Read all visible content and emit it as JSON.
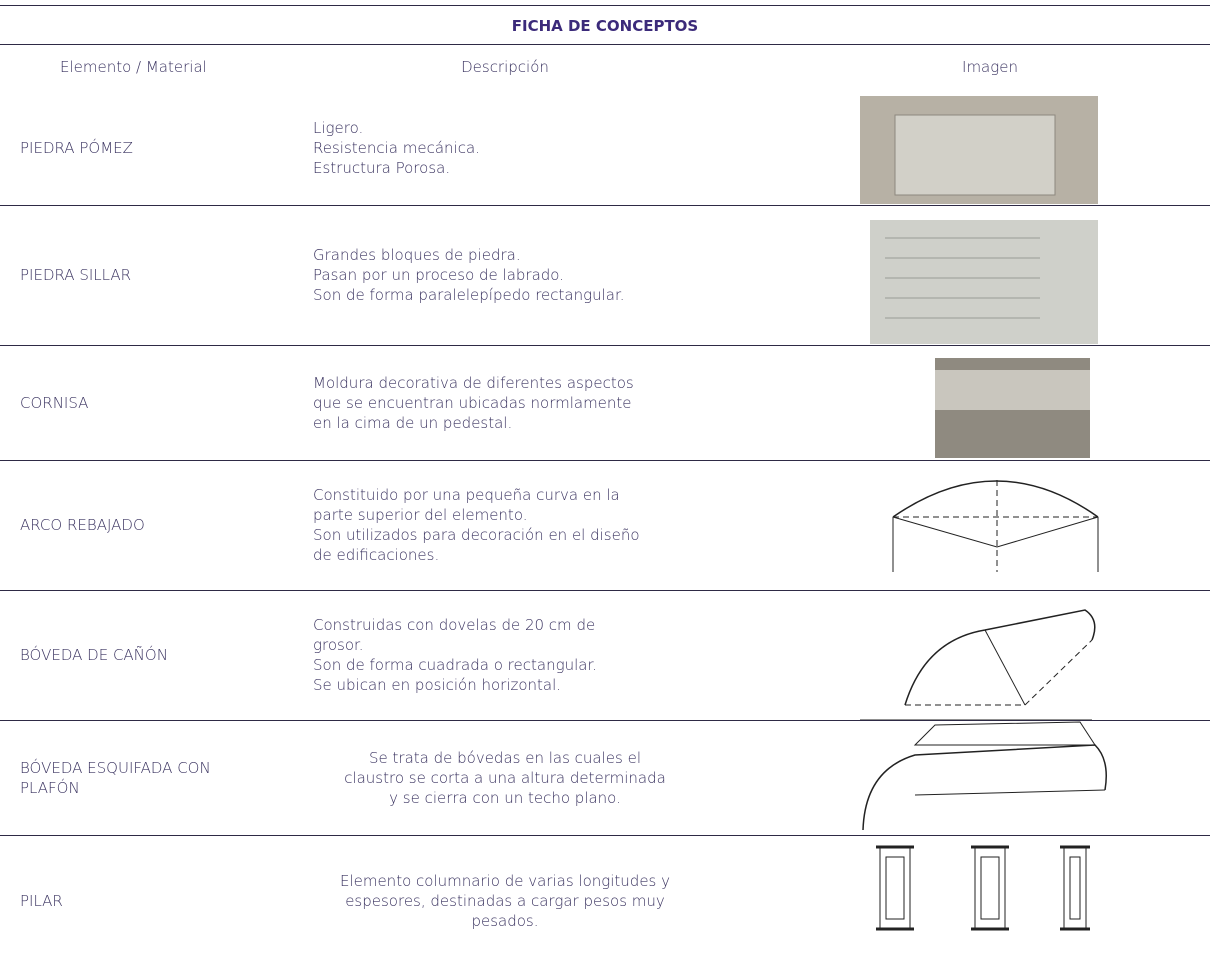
{
  "header": {
    "title": "FICHA DE CONCEPTOS"
  },
  "table": {
    "columns": [
      "Elemento / Material",
      "Descripción",
      "Imagen"
    ],
    "rows": [
      {
        "name": [
          "PIEDRA PÓMEZ"
        ],
        "description": [
          "Ligero.",
          "Resistencia mecánica.",
          "Estructura Porosa."
        ]
      },
      {
        "name": [
          "PIEDRA SILLAR"
        ],
        "description": [
          "Grandes bloques de piedra.",
          "Pasan por un proceso de labrado.",
          "Son de forma paralelepípedo rectangular."
        ]
      },
      {
        "name": [
          "CORNISA"
        ],
        "description": [
          "Moldura decorativa de diferentes aspectos",
          "que se encuentran ubicadas normlamente",
          "en la cima de un pedestal."
        ]
      },
      {
        "name": [
          "ARCO REBAJADO"
        ],
        "description": [
          "Constituido por una pequeña curva en la",
          "parte superior del elemento.",
          "Son utilizados para decoración en el diseño",
          "de edificaciones."
        ]
      },
      {
        "name": [
          "BÓVEDA DE CAÑÓN"
        ],
        "description": [
          "Construidas con dovelas de 20 cm de",
          "grosor.",
          "Son de forma cuadrada o rectangular.",
          "Se ubican en posición horizontal."
        ]
      },
      {
        "name": [
          "BÓVEDA ESQUIFADA CON",
          "PLAFÓN"
        ],
        "description": [
          "Se trata de bóvedas en las cuales el",
          "claustro se corta a una altura determinada",
          "y se cierra con un techo plano."
        ]
      },
      {
        "name": [
          "PILAR"
        ],
        "description": [
          "Elemento columnario de varias longitudes y",
          "espesores, destinadas a cargar pesos muy",
          "pesados."
        ]
      }
    ]
  }
}
